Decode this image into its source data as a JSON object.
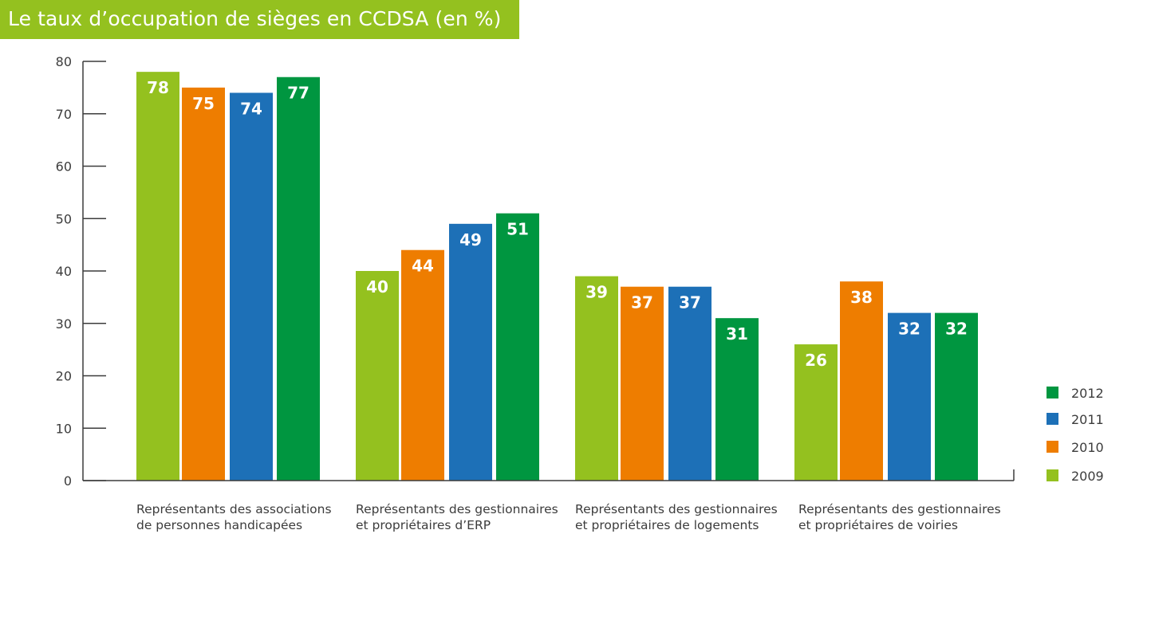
{
  "chart_data": {
    "type": "bar",
    "title": "Le taux d’occupation de sièges en CCDSA (en %)",
    "xlabel": "",
    "ylabel": "",
    "ylim": [
      0,
      80
    ],
    "yticks": [
      0,
      10,
      20,
      30,
      40,
      50,
      60,
      70,
      80
    ],
    "grid": false,
    "legend_position": "right",
    "categories": [
      [
        "Représentants des associations",
        "de personnes handicapées"
      ],
      [
        "Représentants des gestionnaires",
        "et propriétaires d’ERP"
      ],
      [
        "Représentants des gestionnaires",
        "et propriétaires de logements"
      ],
      [
        "Représentants des gestionnaires",
        "et propriétaires de voiries"
      ]
    ],
    "series": [
      {
        "name": "2009",
        "color": "#94c11f",
        "values": [
          78,
          40,
          39,
          26
        ]
      },
      {
        "name": "2010",
        "color": "#ee7d00",
        "values": [
          75,
          44,
          37,
          38
        ]
      },
      {
        "name": "2011",
        "color": "#1d70b7",
        "values": [
          74,
          49,
          37,
          32
        ]
      },
      {
        "name": "2012",
        "color": "#009640",
        "values": [
          77,
          51,
          31,
          32
        ]
      }
    ],
    "legend_order": [
      "2012",
      "2011",
      "2010",
      "2009"
    ],
    "bar_label_color": "#ffffff",
    "axis_color": "#3c3c3c"
  }
}
